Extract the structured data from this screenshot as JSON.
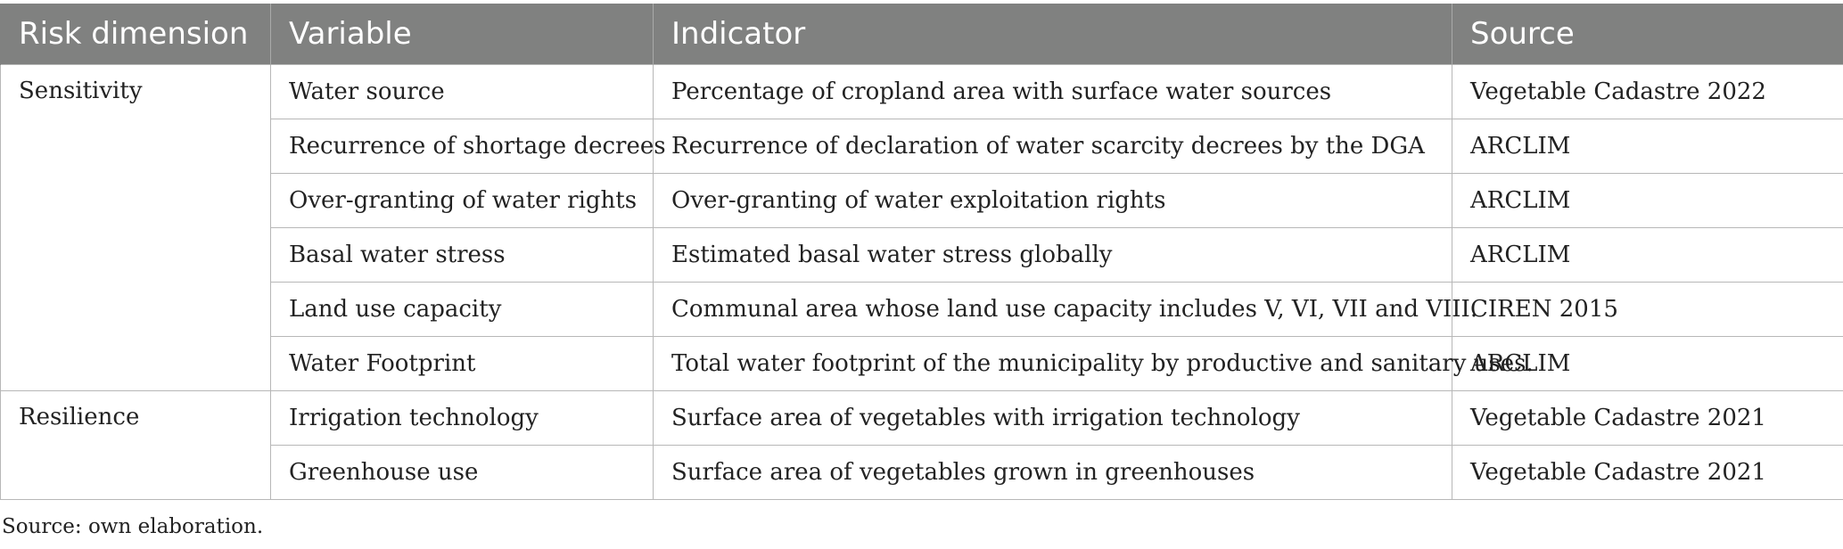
{
  "table": {
    "headers": [
      "Risk dimension",
      "Variable",
      "Indicator",
      "Source"
    ],
    "groups": [
      {
        "dimension": "Sensitivity",
        "rows": [
          {
            "variable": "Water source",
            "indicator": "Percentage of cropland area with surface water sources",
            "source": "Vegetable Cadastre 2022"
          },
          {
            "variable": "Recurrence of shortage decrees",
            "indicator": "Recurrence of declaration of water scarcity decrees by the DGA",
            "source": "ARCLIM"
          },
          {
            "variable": "Over-granting of water rights",
            "indicator": "Over-granting of water exploitation rights",
            "source": "ARCLIM"
          },
          {
            "variable": "Basal water stress",
            "indicator": "Estimated basal water stress globally",
            "source": "ARCLIM"
          },
          {
            "variable": "Land use capacity",
            "indicator": "Communal area whose land use capacity includes V, VI, VII and VIII.",
            "source": "CIREN 2015"
          },
          {
            "variable": "Water Footprint",
            "indicator": "Total water footprint of the municipality by productive and sanitary uses.",
            "source": "ARCLIM"
          }
        ]
      },
      {
        "dimension": "Resilience",
        "rows": [
          {
            "variable": "Irrigation technology",
            "indicator": "Surface area of vegetables with irrigation technology",
            "source": "Vegetable Cadastre 2021"
          },
          {
            "variable": "Greenhouse use",
            "indicator": "Surface area of vegetables grown in greenhouses",
            "source": "Vegetable Cadastre 2021"
          }
        ]
      }
    ]
  },
  "caption": "Source: own elaboration.",
  "colors": {
    "header_bg": "#808180",
    "header_text": "#ffffff",
    "grid": "#b7b7b7"
  }
}
